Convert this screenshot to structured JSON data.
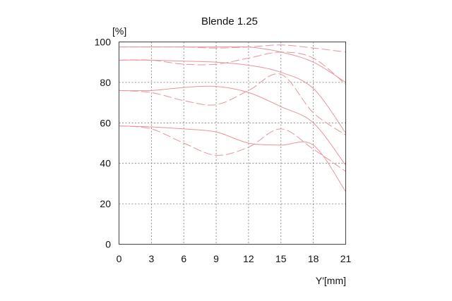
{
  "chart_data": {
    "type": "line",
    "title": "Blende 1.25",
    "xlabel": "Y'[mm]",
    "ylabel": "[%]",
    "xlim": [
      0,
      21
    ],
    "ylim": [
      0,
      100
    ],
    "xticks": [
      0,
      3,
      6,
      9,
      12,
      15,
      18,
      21
    ],
    "yticks": [
      0,
      20,
      40,
      60,
      80,
      100
    ],
    "grid": true,
    "legend": "none",
    "line_color": "#e8949a",
    "series": [
      {
        "style": "solid",
        "x": [
          0,
          3,
          6,
          9,
          12,
          15,
          18,
          21
        ],
        "y": [
          97.5,
          97.5,
          97.5,
          97.5,
          97.5,
          95,
          90,
          80
        ]
      },
      {
        "style": "dashed",
        "x": [
          0,
          3,
          6,
          9,
          12,
          15,
          18,
          21
        ],
        "y": [
          97.5,
          97.5,
          97.5,
          97,
          97.5,
          98.5,
          97,
          95
        ]
      },
      {
        "style": "solid",
        "x": [
          0,
          3,
          6,
          9,
          12,
          15,
          18,
          21
        ],
        "y": [
          91,
          91,
          90.5,
          90,
          88.5,
          85,
          77,
          55
        ]
      },
      {
        "style": "dashed",
        "x": [
          0,
          3,
          6,
          9,
          12,
          15,
          18,
          21
        ],
        "y": [
          91,
          91,
          89,
          89,
          92,
          95,
          92,
          79
        ]
      },
      {
        "style": "solid",
        "x": [
          0,
          3,
          6,
          9,
          12,
          15,
          18,
          21
        ],
        "y": [
          76,
          76,
          77.5,
          78,
          75,
          68,
          60,
          39
        ]
      },
      {
        "style": "dashed",
        "x": [
          0,
          3,
          6,
          9,
          12,
          15,
          18,
          21
        ],
        "y": [
          76,
          75,
          71,
          69,
          76,
          84,
          65,
          54
        ]
      },
      {
        "style": "solid",
        "x": [
          0,
          3,
          6,
          9,
          12,
          15,
          18,
          21
        ],
        "y": [
          58.5,
          58,
          57,
          55.5,
          50,
          49,
          49,
          26
        ]
      },
      {
        "style": "dashed",
        "x": [
          0,
          3,
          6,
          9,
          12,
          15,
          18,
          21
        ],
        "y": [
          58.5,
          57,
          50,
          44,
          48,
          57,
          47,
          36
        ]
      }
    ]
  }
}
